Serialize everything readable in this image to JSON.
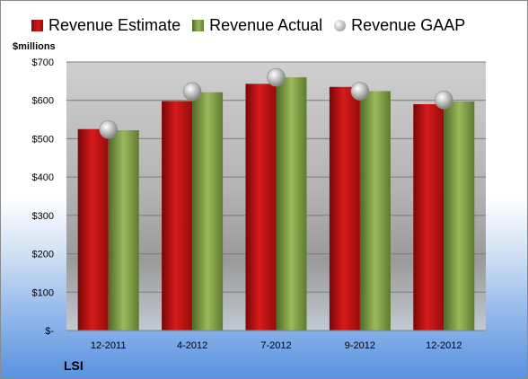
{
  "chart_data": {
    "type": "bar",
    "title": "",
    "ylabel": "$millions",
    "xlabel": "",
    "company": "LSI",
    "categories": [
      "12-2011",
      "4-2012",
      "7-2012",
      "9-2012",
      "12-2012"
    ],
    "series": [
      {
        "name": "Revenue Estimate",
        "kind": "bar",
        "color": "#c81414",
        "values": [
          525,
          598,
          643,
          635,
          590
        ]
      },
      {
        "name": "Revenue Actual",
        "kind": "bar",
        "color": "#8aab4f",
        "values": [
          522,
          621,
          660,
          624,
          597
        ]
      },
      {
        "name": "Revenue GAAP",
        "kind": "marker",
        "color": "#bdbdbd",
        "values": [
          524,
          623,
          660,
          624,
          601
        ]
      }
    ],
    "ylim": [
      0,
      700
    ],
    "yticks": [
      0,
      100,
      200,
      300,
      400,
      500,
      600,
      700
    ],
    "ytick_labels": [
      "$-",
      "$100",
      "$200",
      "$300",
      "$400",
      "$500",
      "$600",
      "$700"
    ],
    "grid": true,
    "legend_position": "top"
  }
}
